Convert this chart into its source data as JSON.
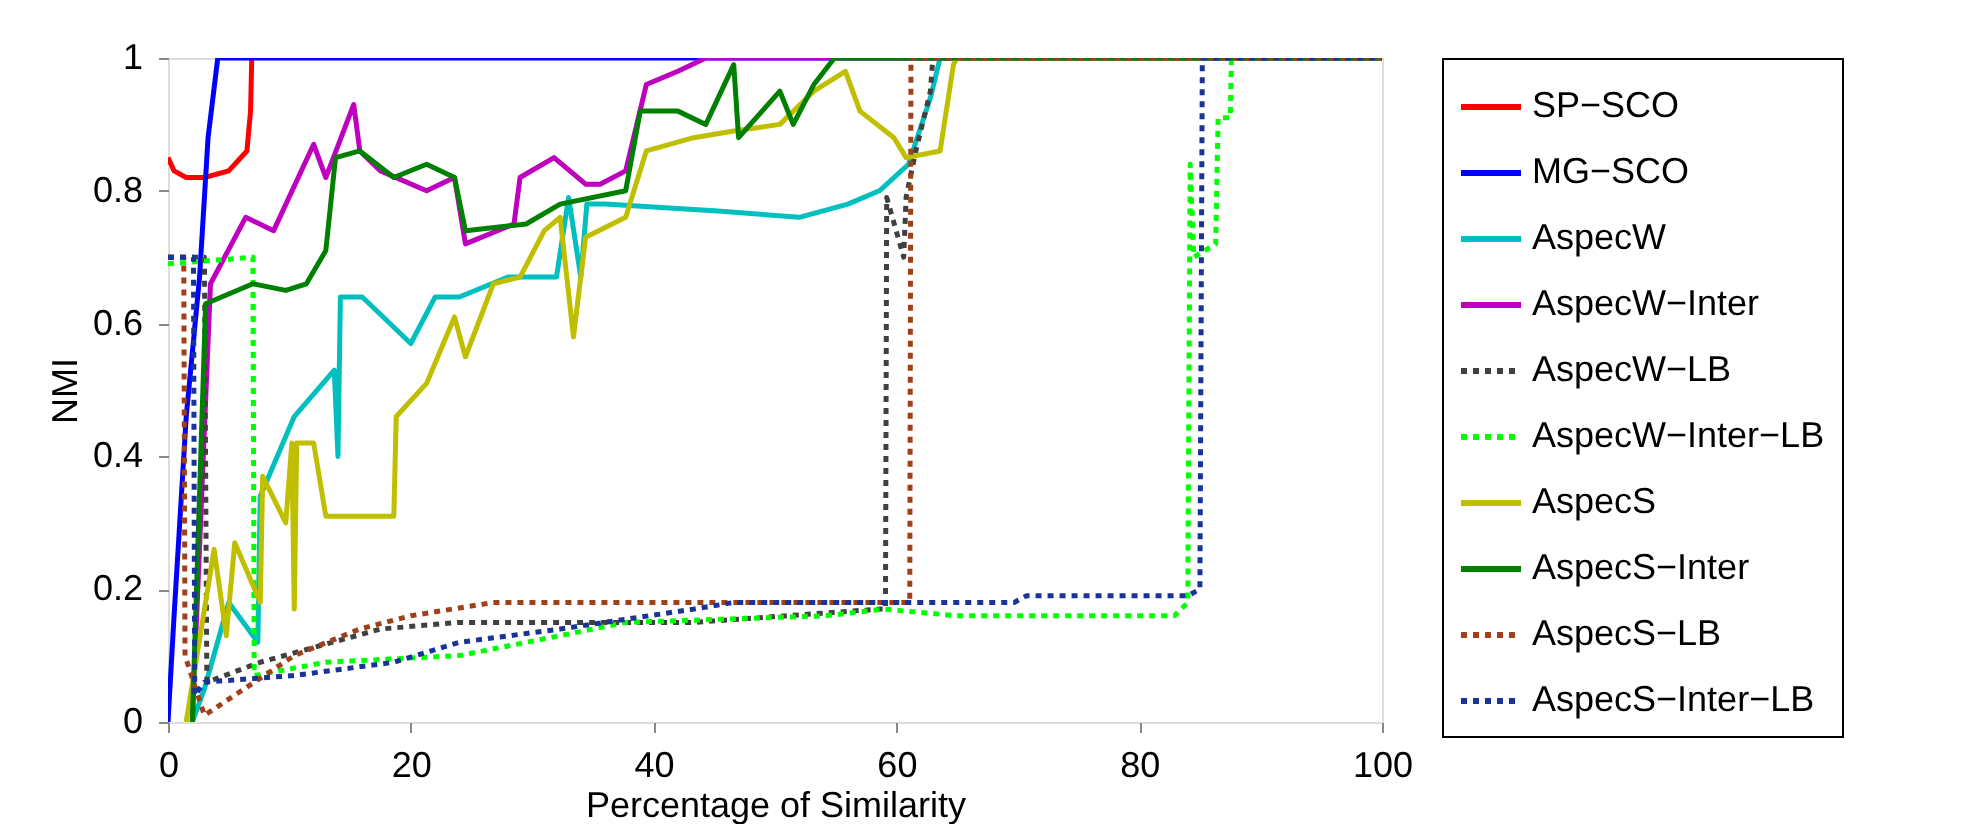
{
  "chart_data": {
    "type": "line",
    "xlabel": "Percentage of Similarity",
    "ylabel": "NMI",
    "xlim": [
      0,
      100
    ],
    "xticks": [
      0,
      20,
      40,
      60,
      80,
      100
    ],
    "ylim": [
      0,
      1
    ],
    "yticks": [
      0,
      0.2,
      0.4,
      0.6,
      0.8,
      1
    ],
    "grid": false,
    "legend": "right",
    "marker": "none",
    "series": [
      {
        "name": "SP−SCO",
        "color": "#ff0000",
        "line_style": "solid",
        "x": [
          0,
          0.5,
          1.5,
          3,
          5,
          6.5,
          6.8,
          6.9
        ],
        "values": [
          0.85,
          0.83,
          0.82,
          0.82,
          0.83,
          0.86,
          0.92,
          1.0
        ]
      },
      {
        "name": "MG−SCO",
        "color": "#0000ff",
        "line_style": "solid",
        "x": [
          0,
          0.5,
          1.5,
          2.6,
          3.3,
          4.1,
          100
        ],
        "values": [
          0,
          0.16,
          0.46,
          0.67,
          0.88,
          1,
          1
        ]
      },
      {
        "name": "AspecW",
        "color": "#00bfbf",
        "line_style": "solid",
        "x": [
          2,
          3,
          5,
          7.4,
          7.6,
          10.4,
          13.7,
          14,
          14.2,
          16,
          20,
          22,
          24,
          28,
          32,
          33,
          34,
          34.5,
          36,
          45,
          52,
          56,
          58.6,
          61,
          62.8,
          63.6,
          100
        ],
        "values": [
          0,
          0.05,
          0.18,
          0.12,
          0.34,
          0.46,
          0.53,
          0.4,
          0.64,
          0.64,
          0.57,
          0.64,
          0.64,
          0.67,
          0.67,
          0.79,
          0.67,
          0.78,
          0.78,
          0.77,
          0.76,
          0.78,
          0.8,
          0.84,
          0.94,
          1,
          1
        ]
      },
      {
        "name": "AspecW−Inter",
        "color": "#bf00bf",
        "line_style": "solid",
        "x": [
          2,
          3.5,
          6.4,
          8.7,
          12,
          13,
          15.3,
          15.8,
          17.5,
          21.3,
          23.6,
          24.5,
          28.5,
          29,
          31.8,
          34.4,
          35.6,
          37.7,
          39.4,
          42,
          44.3,
          100
        ],
        "values": [
          0,
          0.66,
          0.76,
          0.74,
          0.87,
          0.82,
          0.93,
          0.86,
          0.83,
          0.8,
          0.82,
          0.72,
          0.75,
          0.82,
          0.85,
          0.81,
          0.81,
          0.83,
          0.96,
          0.98,
          1,
          1
        ]
      },
      {
        "name": "AspecW−LB",
        "color": "#404040",
        "line_style": "dotted",
        "x": [
          0,
          3,
          3.2,
          7.6,
          17.5,
          24,
          35,
          43.3,
          58.6,
          59.1,
          59.2,
          60.6,
          60.8,
          61.6,
          62.8,
          63,
          100
        ],
        "values": [
          0.7,
          0.7,
          0.06,
          0.09,
          0.14,
          0.15,
          0.15,
          0.15,
          0.17,
          0.17,
          0.79,
          0.7,
          0.79,
          0.86,
          0.95,
          1,
          1
        ]
      },
      {
        "name": "AspecW−Inter−LB",
        "color": "#00ff00",
        "line_style": "dotted",
        "x": [
          0,
          7,
          7.1,
          13,
          24,
          32.3,
          37.7,
          54.2,
          59,
          65,
          82.9,
          84,
          84.2,
          84.5,
          86.3,
          86.5,
          87.5,
          87.6,
          100
        ],
        "values": [
          0.69,
          0.7,
          0.07,
          0.09,
          0.1,
          0.13,
          0.15,
          0.16,
          0.17,
          0.16,
          0.16,
          0.18,
          0.84,
          0.7,
          0.72,
          0.91,
          0.91,
          1,
          1
        ]
      },
      {
        "name": "AspecS",
        "color": "#bfbf00",
        "line_style": "solid",
        "x": [
          1.5,
          3.8,
          4.8,
          5.5,
          7.6,
          7.8,
          9.7,
          10.2,
          10.4,
          10.6,
          12,
          13,
          18.6,
          18.8,
          21.3,
          23.6,
          24.5,
          26.8,
          29,
          31,
          32.3,
          33.4,
          34.4,
          37.7,
          39.4,
          43.3,
          46.6,
          50.4,
          53.2,
          55.8,
          57,
          59.8,
          60.8,
          63.6,
          64.7,
          65,
          100
        ],
        "values": [
          0,
          0.26,
          0.13,
          0.27,
          0.18,
          0.37,
          0.3,
          0.42,
          0.17,
          0.42,
          0.42,
          0.31,
          0.31,
          0.46,
          0.51,
          0.61,
          0.55,
          0.66,
          0.67,
          0.74,
          0.76,
          0.58,
          0.73,
          0.76,
          0.86,
          0.88,
          0.89,
          0.9,
          0.95,
          0.98,
          0.92,
          0.88,
          0.85,
          0.86,
          0.99,
          1,
          1
        ]
      },
      {
        "name": "AspecS−Inter",
        "color": "#008000",
        "line_style": "solid",
        "x": [
          2,
          3.1,
          7,
          9.7,
          11.4,
          13,
          13.8,
          15.8,
          18.6,
          21.3,
          23.6,
          24.5,
          29.5,
          32.3,
          37.7,
          38.9,
          42,
          44.3,
          46.6,
          47,
          50.4,
          51.5,
          53.2,
          54.9,
          100
        ],
        "values": [
          0,
          0.63,
          0.66,
          0.65,
          0.66,
          0.71,
          0.85,
          0.86,
          0.82,
          0.84,
          0.82,
          0.74,
          0.75,
          0.78,
          0.8,
          0.92,
          0.92,
          0.9,
          0.99,
          0.88,
          0.95,
          0.9,
          0.96,
          1,
          1
        ]
      },
      {
        "name": "AspecS−LB",
        "color": "#a0401a",
        "line_style": "dotted",
        "x": [
          0,
          1.3,
          1.4,
          3,
          10.4,
          15.8,
          20,
          26.8,
          40,
          61.1,
          61.2,
          100
        ],
        "values": [
          0.7,
          0.7,
          0.1,
          0.01,
          0.1,
          0.14,
          0.16,
          0.18,
          0.18,
          0.18,
          1,
          1
        ]
      },
      {
        "name": "AspecS−Inter−LB",
        "color": "#1a3399",
        "line_style": "dotted",
        "x": [
          0,
          2.1,
          2.2,
          3,
          10.4,
          18.6,
          24,
          32.3,
          43.3,
          46.6,
          69.7,
          70.7,
          84,
          85,
          85.2,
          100
        ],
        "values": [
          0.7,
          0.7,
          0.04,
          0.06,
          0.07,
          0.09,
          0.12,
          0.14,
          0.17,
          0.18,
          0.18,
          0.19,
          0.19,
          0.2,
          1,
          1
        ]
      }
    ]
  }
}
